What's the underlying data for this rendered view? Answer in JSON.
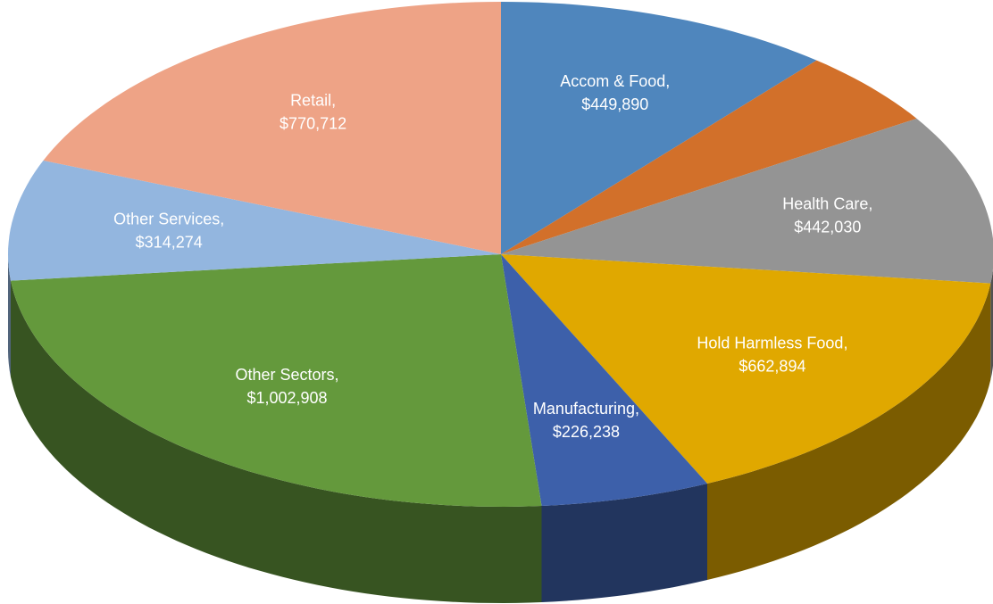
{
  "chart_data": {
    "type": "pie3d",
    "categories": [
      "Accom & Food,",
      null,
      "Health Care,",
      "Hold Harmless Food,",
      "Manufacturing,",
      "Other Sectors,",
      "Other Services,",
      "Retail,"
    ],
    "values": [
      449890,
      200000,
      442030,
      662894,
      226238,
      1002908,
      314274,
      770712
    ],
    "value_labels": [
      "$449,890",
      null,
      "$442,030",
      "$662,894",
      "$226,238",
      "$1,002,908",
      "$314,274",
      "$770,712"
    ],
    "colors": [
      "#4f86bd",
      "#d2702a",
      "#949494",
      "#e0a800",
      "#3d60aa",
      "#64993c",
      "#93b6df",
      "#eea386"
    ]
  }
}
